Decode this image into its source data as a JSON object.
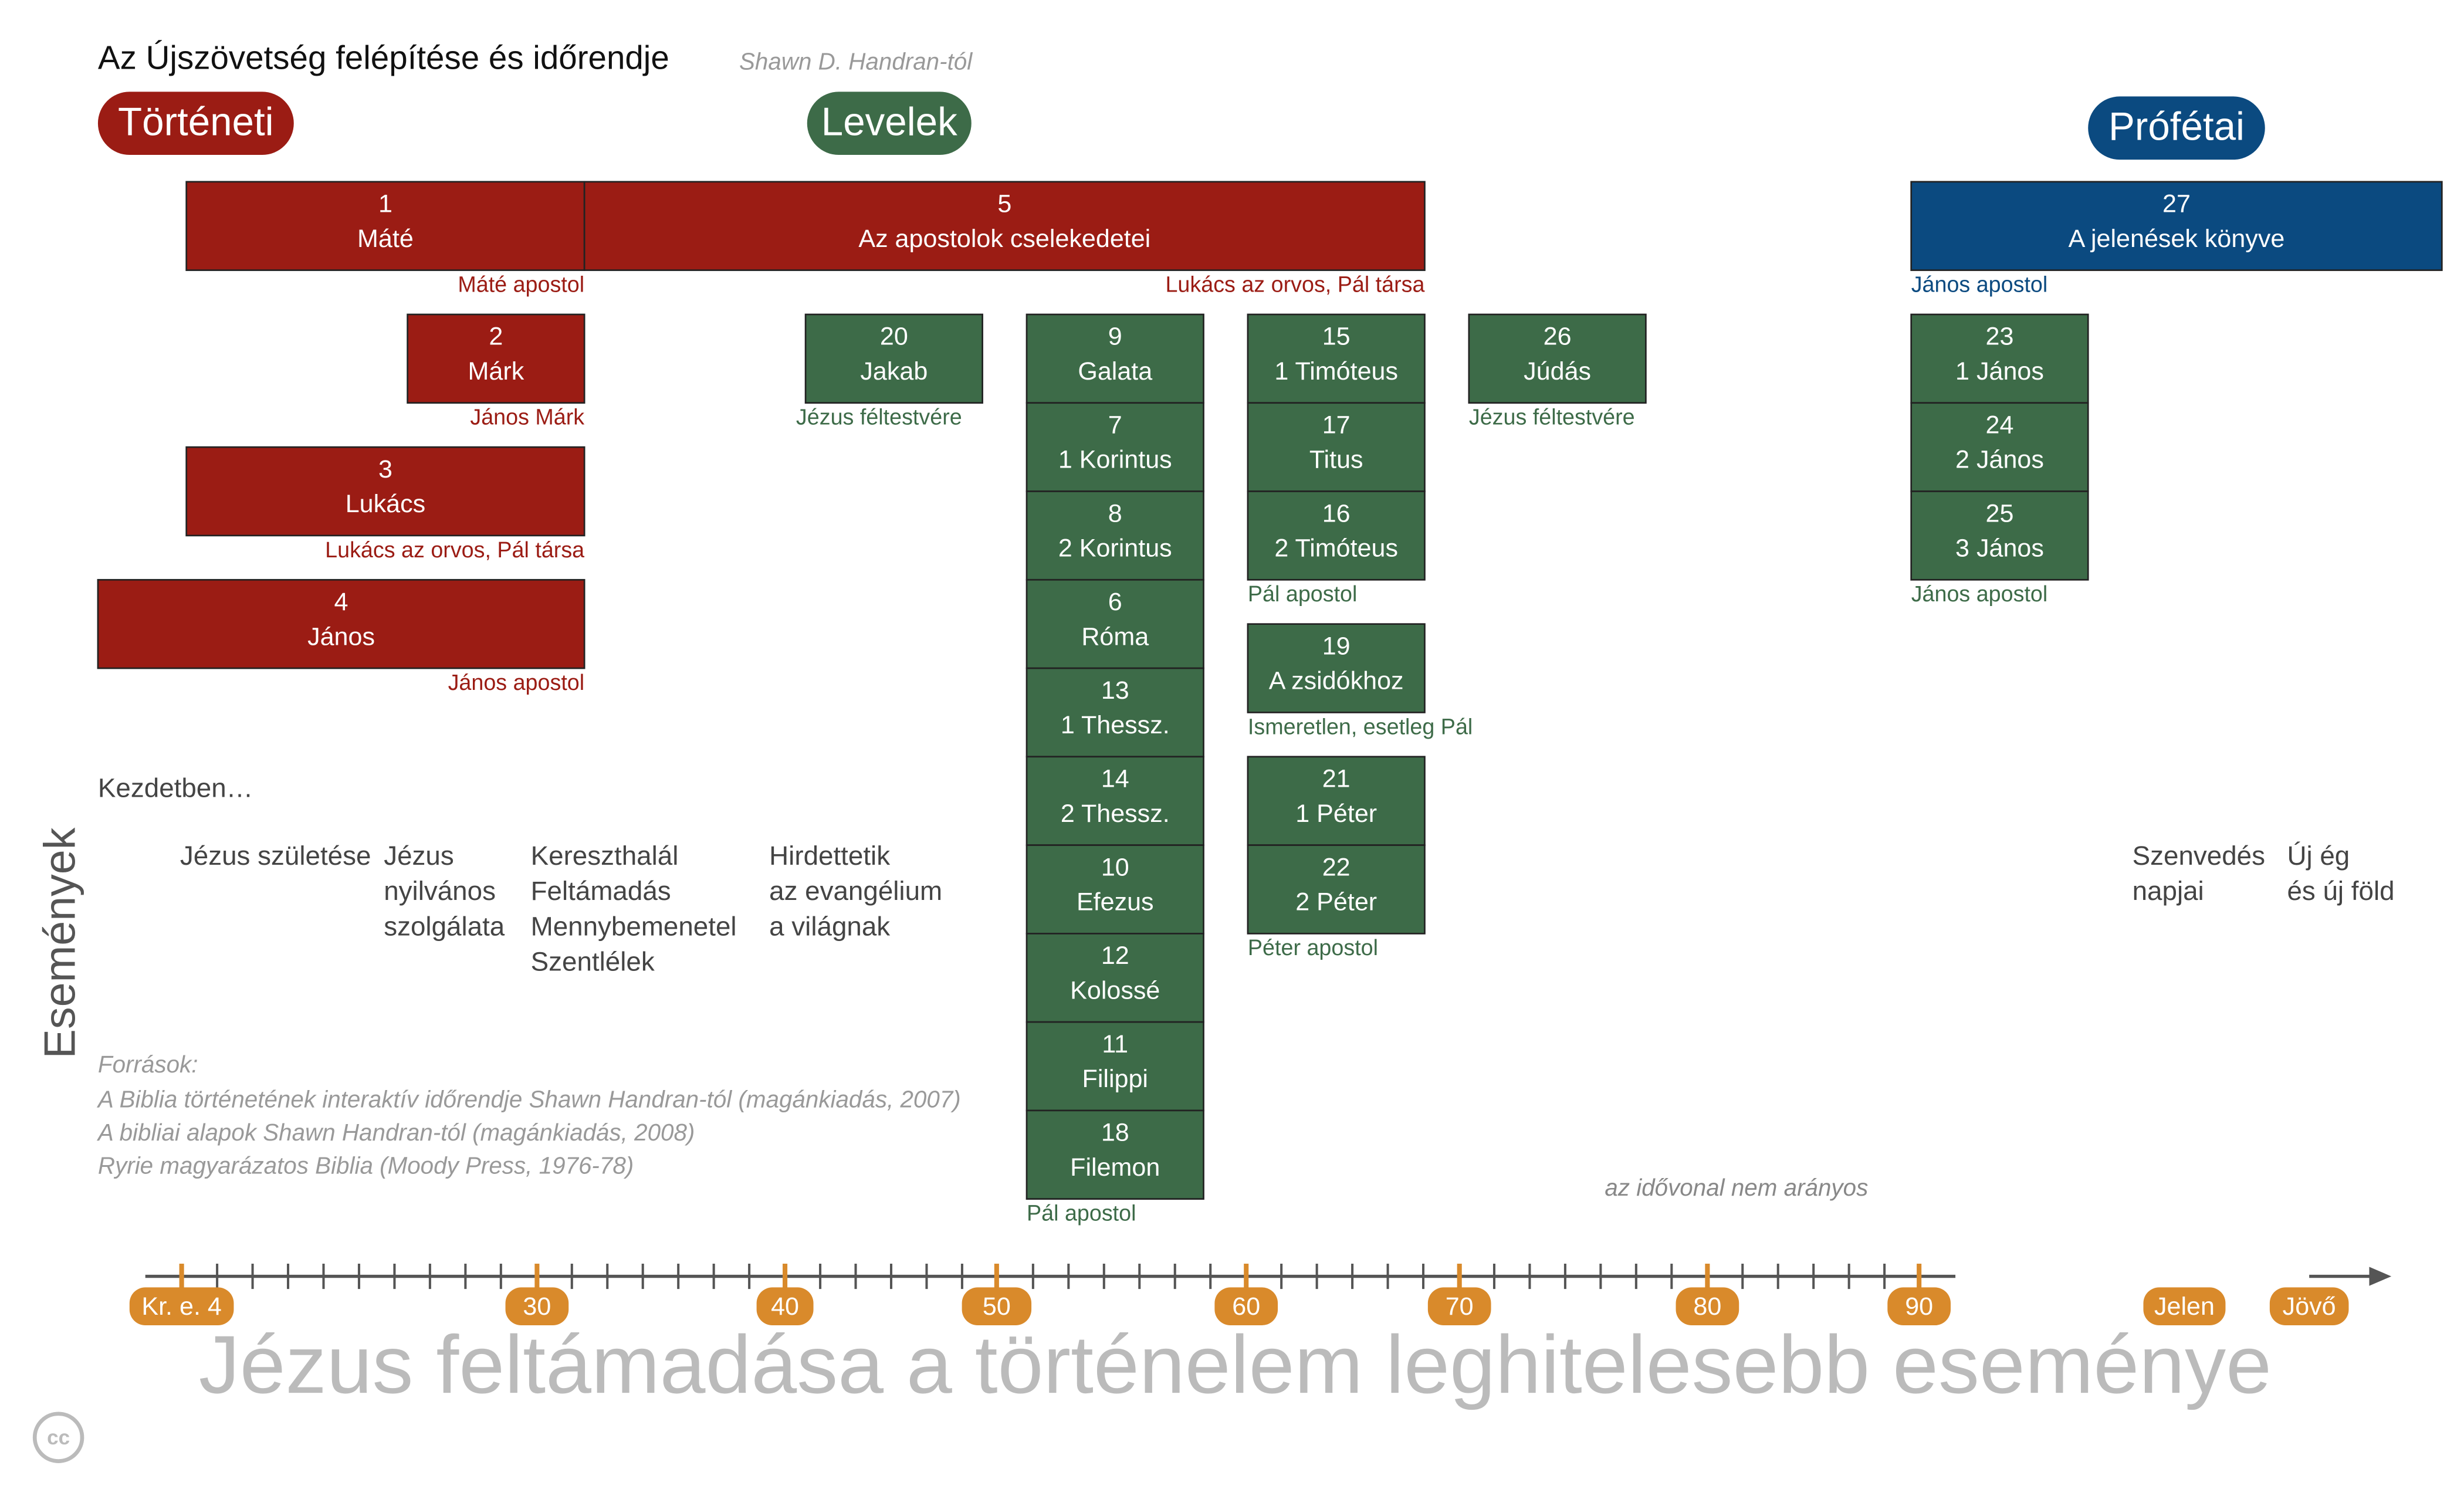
{
  "header": {
    "title": "Az Újszövetség felépítése és időrendje",
    "author": "Shawn D. Handran-tól"
  },
  "sections": [
    {
      "label": "Történeti",
      "color": "#9b1c14"
    },
    {
      "label": "Levelek",
      "color": "#3d6b48"
    },
    {
      "label": "Prófétai",
      "color": "#0b4a80"
    }
  ],
  "groups": [
    {
      "color": "#9b1c14",
      "author": "Máté apostol",
      "books": [
        {
          "number": "1",
          "name": "Máté"
        }
      ]
    },
    {
      "color": "#9b1c14",
      "author": "Lukács az orvos, Pál társa",
      "books": [
        {
          "number": "5",
          "name": "Az apostolok cselekedetei"
        }
      ]
    },
    {
      "color": "#9b1c14",
      "author": "János Márk",
      "books": [
        {
          "number": "2",
          "name": "Márk"
        }
      ]
    },
    {
      "color": "#9b1c14",
      "author": "Lukács az orvos, Pál társa",
      "books": [
        {
          "number": "3",
          "name": "Lukács"
        }
      ]
    },
    {
      "color": "#9b1c14",
      "author": "János apostol",
      "books": [
        {
          "number": "4",
          "name": "János"
        }
      ]
    },
    {
      "color": "#0b4a80",
      "author": "János apostol",
      "books": [
        {
          "number": "27",
          "name": "A jelenések könyve"
        }
      ]
    },
    {
      "color": "#3d6b48",
      "author": "Jézus féltestvére",
      "books": [
        {
          "number": "20",
          "name": "Jakab"
        }
      ]
    },
    {
      "color": "#3d6b48",
      "author": "Pál apostol",
      "books": [
        {
          "number": "9",
          "name": "Galata"
        },
        {
          "number": "7",
          "name": "1 Korintus"
        },
        {
          "number": "8",
          "name": "2 Korintus"
        },
        {
          "number": "6",
          "name": "Róma"
        },
        {
          "number": "13",
          "name": "1 Thessz."
        },
        {
          "number": "14",
          "name": "2 Thessz."
        },
        {
          "number": "10",
          "name": "Efezus"
        },
        {
          "number": "12",
          "name": "Kolossé"
        },
        {
          "number": "11",
          "name": "Filippi"
        },
        {
          "number": "18",
          "name": "Filemon"
        }
      ]
    },
    {
      "color": "#3d6b48",
      "author": "Pál apostol",
      "books": [
        {
          "number": "15",
          "name": "1 Timóteus"
        },
        {
          "number": "17",
          "name": "Titus"
        },
        {
          "number": "16",
          "name": "2 Timóteus"
        }
      ]
    },
    {
      "color": "#3d6b48",
      "author": "Ismeretlen, esetleg Pál",
      "books": [
        {
          "number": "19",
          "name": "A zsidókhoz"
        }
      ]
    },
    {
      "color": "#3d6b48",
      "author": "Péter apostol",
      "books": [
        {
          "number": "21",
          "name": "1 Péter"
        },
        {
          "number": "22",
          "name": "2 Péter"
        }
      ]
    },
    {
      "color": "#3d6b48",
      "author": "Jézus féltestvére",
      "books": [
        {
          "number": "26",
          "name": "Júdás"
        }
      ]
    },
    {
      "color": "#3d6b48",
      "author": "János apostol",
      "books": [
        {
          "number": "23",
          "name": "1 János"
        },
        {
          "number": "24",
          "name": "2 János"
        },
        {
          "number": "25",
          "name": "3 János"
        }
      ]
    }
  ],
  "events": {
    "label": "Események",
    "intro": "Kezdetben…",
    "items": [
      [
        "Jézus születése"
      ],
      [
        "Jézus",
        "nyilvános",
        "szolgálata"
      ],
      [
        "Kereszthalál",
        "Feltámadás",
        "Mennybemenetel",
        "Szentlélek"
      ],
      [
        "Hirdettetik",
        "az evangélium",
        "a világnak"
      ],
      [
        "Szenvedés",
        "napjai"
      ],
      [
        "Új ég",
        "és új föld"
      ]
    ]
  },
  "sources": {
    "heading": "Források:",
    "lines": [
      "A Biblia történetének interaktív időrendje Shawn Handran-tól (magánkiadás, 2007)",
      "A bibliai alapok Shawn Handran-tól (magánkiadás, 2008)",
      "Ryrie magyarázatos Biblia (Moody Press, 1976-78)"
    ]
  },
  "note": "az idővonal nem arányos",
  "timeline": [
    "Kr. e. 4",
    "30",
    "40",
    "50",
    "60",
    "70",
    "80",
    "90",
    "Jelen",
    "Jövő"
  ],
  "footer": "Jézus feltámadása a történelem leghitelesebb eseménye",
  "license": "cc"
}
